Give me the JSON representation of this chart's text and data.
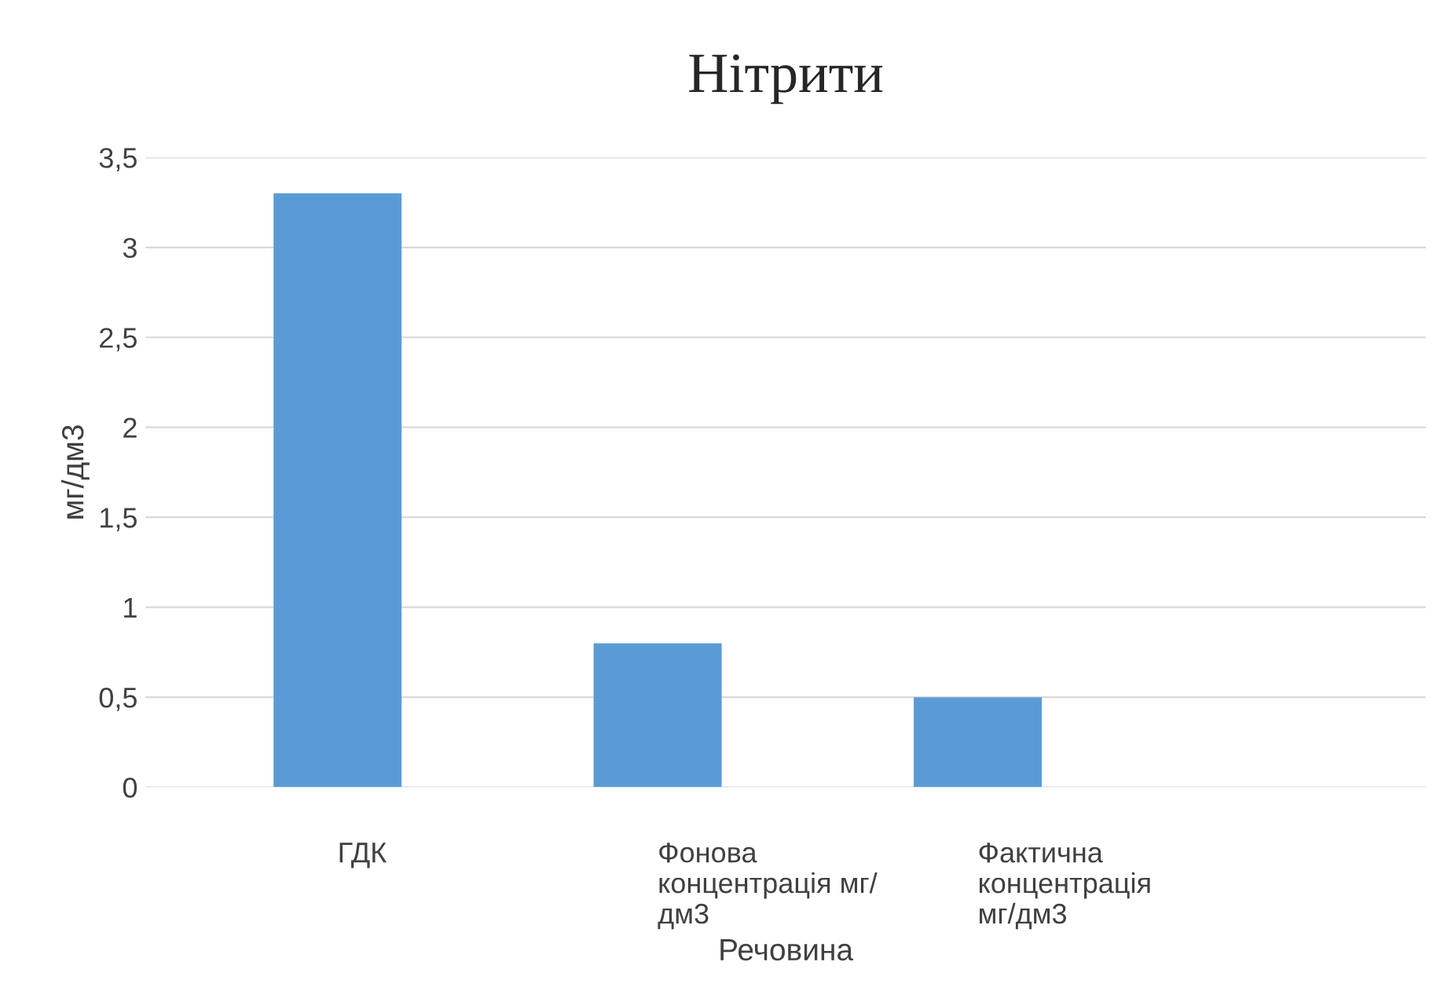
{
  "chart_data": {
    "type": "bar",
    "title": "Нітрити",
    "xlabel": "Речовина",
    "ylabel": "мг/дм3",
    "categories": [
      "ГДК",
      "Фонова\nконцентрація мг/\nдм3",
      "Фактична\nконцентрація\nмг/дм3"
    ],
    "values": [
      3.3,
      0.8,
      0.5
    ],
    "color": "#5b9bd5",
    "ylim": [
      0,
      3.5
    ],
    "yticks": [
      0,
      {
        "value": 0.5,
        "label": "0,5"
      },
      1,
      {
        "value": 1.5,
        "label": "1,5"
      },
      2,
      {
        "value": 2.5,
        "label": "2,5"
      },
      3,
      {
        "value": 3.5,
        "label": "3,5"
      }
    ],
    "grid": "y"
  }
}
